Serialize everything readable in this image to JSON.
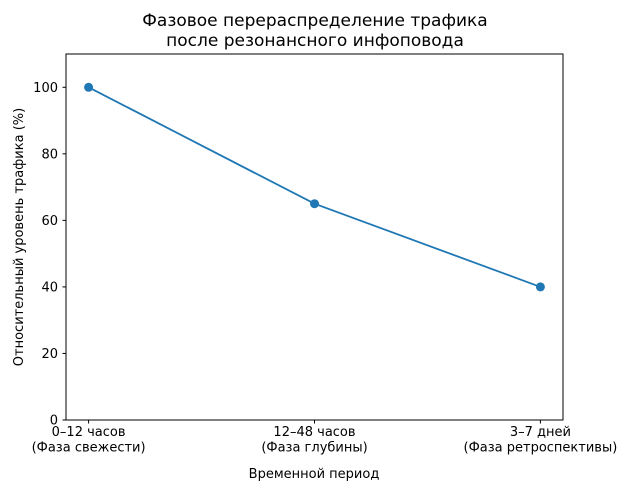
{
  "chart_data": {
    "type": "line",
    "title_lines": [
      "Фазовое перераспределение трафика",
      "после резонансного инфоповода"
    ],
    "xlabel": "Временной период",
    "ylabel": "Относительный уровень трафика (%)",
    "categories": [
      [
        "0–12 часов",
        "(Фаза свежести)"
      ],
      [
        "12–48 часов",
        "(Фаза глубины)"
      ],
      [
        "3–7 дней",
        "(Фаза ретроспективы)"
      ]
    ],
    "series": [
      {
        "name": "Относительный уровень трафика",
        "values": [
          100,
          65,
          40
        ]
      }
    ],
    "yticks": [
      0,
      20,
      40,
      60,
      80,
      100
    ],
    "ylim": [
      0,
      110
    ],
    "xlim": [
      -0.1,
      2.1
    ],
    "grid": false,
    "legend": "none",
    "line_color": "#1f77b4",
    "marker": "circle",
    "spine_color": "#000000",
    "background": "#ffffff"
  }
}
